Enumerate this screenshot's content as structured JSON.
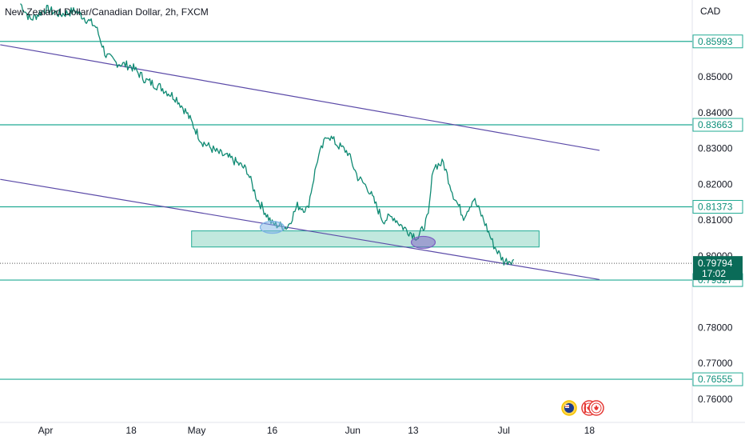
{
  "header": {
    "symbol_title": "New Zealand Dollar/Canadian Dollar, 2h, FXCM",
    "currency": "CAD"
  },
  "colors": {
    "candle": "#0f8a73",
    "level_line": "#22ab94",
    "trend_line": "#5b4aa8",
    "zone_fill": "#9fdccd",
    "price_badge": "#0a6b58"
  },
  "chart_data": {
    "type": "line",
    "ylim": [
      0.7535,
      0.8715
    ],
    "y_ticks": [
      "0.85000",
      "0.84000",
      "0.83000",
      "0.82000",
      "0.81000",
      "0.80000",
      "0.78000",
      "0.77000",
      "0.76000"
    ],
    "x_ticks": [
      "Apr",
      "18",
      "May",
      "16",
      "Jun",
      "13",
      "Jul",
      "18"
    ],
    "horizontal_levels": [
      {
        "label": "0.85993",
        "value": 0.85993
      },
      {
        "label": "0.83663",
        "value": 0.83663
      },
      {
        "label": "0.81373",
        "value": 0.81373
      },
      {
        "label": "0.79327",
        "value": 0.79327
      },
      {
        "label": "0.76555",
        "value": 0.76555
      }
    ],
    "current_price": {
      "value": "0.79794",
      "countdown": "17:02"
    },
    "support_zone": {
      "x_from": "Apr 30",
      "x_to": "Jul 8",
      "low": 0.8025,
      "high": 0.807
    },
    "series": [
      {
        "x": [
          "Mar 27",
          "Mar 29",
          "Apr 1",
          "Apr 4",
          "Apr 7",
          "Apr 11",
          "Apr 13",
          "Apr 15",
          "Apr 18",
          "Apr 21",
          "Apr 24",
          "Apr 27",
          "Apr 29",
          "May 2",
          "May 5",
          "May 8",
          "May 11",
          "May 13",
          "May 16",
          "May 19",
          "May 21",
          "May 23",
          "May 25",
          "May 27",
          "May 29",
          "May 31",
          "Jun 2",
          "Jun 4",
          "Jun 7",
          "Jun 9",
          "Jun 11",
          "Jun 14",
          "Jun 16",
          "Jun 17",
          "Jun 19",
          "Jun 21",
          "Jun 23",
          "Jun 25",
          "Jun 27",
          "Jun 29",
          "Jul 1",
          "Jul 3"
        ],
        "values": [
          0.8705,
          0.866,
          0.869,
          0.8675,
          0.8685,
          0.864,
          0.856,
          0.854,
          0.853,
          0.849,
          0.847,
          0.844,
          0.84,
          0.832,
          0.829,
          0.827,
          0.824,
          0.816,
          0.809,
          0.808,
          0.814,
          0.813,
          0.827,
          0.834,
          0.831,
          0.829,
          0.822,
          0.819,
          0.81,
          0.811,
          0.808,
          0.805,
          0.811,
          0.825,
          0.826,
          0.817,
          0.811,
          0.816,
          0.81,
          0.803,
          0.7985,
          0.799
        ]
      }
    ],
    "trend_lines": [
      {
        "from": {
          "x": "Mar 23",
          "y": 0.859
        },
        "to": {
          "x": "Jul 20",
          "y": 0.8295
        }
      },
      {
        "from": {
          "x": "Mar 23",
          "y": 0.8214
        },
        "to": {
          "x": "Jul 20",
          "y": 0.7934
        }
      }
    ],
    "highlight_ellipses": [
      {
        "x": "May 16",
        "y": 0.808,
        "color": "#7fb3e6"
      },
      {
        "x": "Jun 15",
        "y": 0.8038,
        "color": "#7b5cc2"
      }
    ]
  },
  "footer": {
    "event_icons": [
      "nz-flag-icon",
      "ca-flag-icon",
      "ca-flag-icon-2"
    ]
  }
}
